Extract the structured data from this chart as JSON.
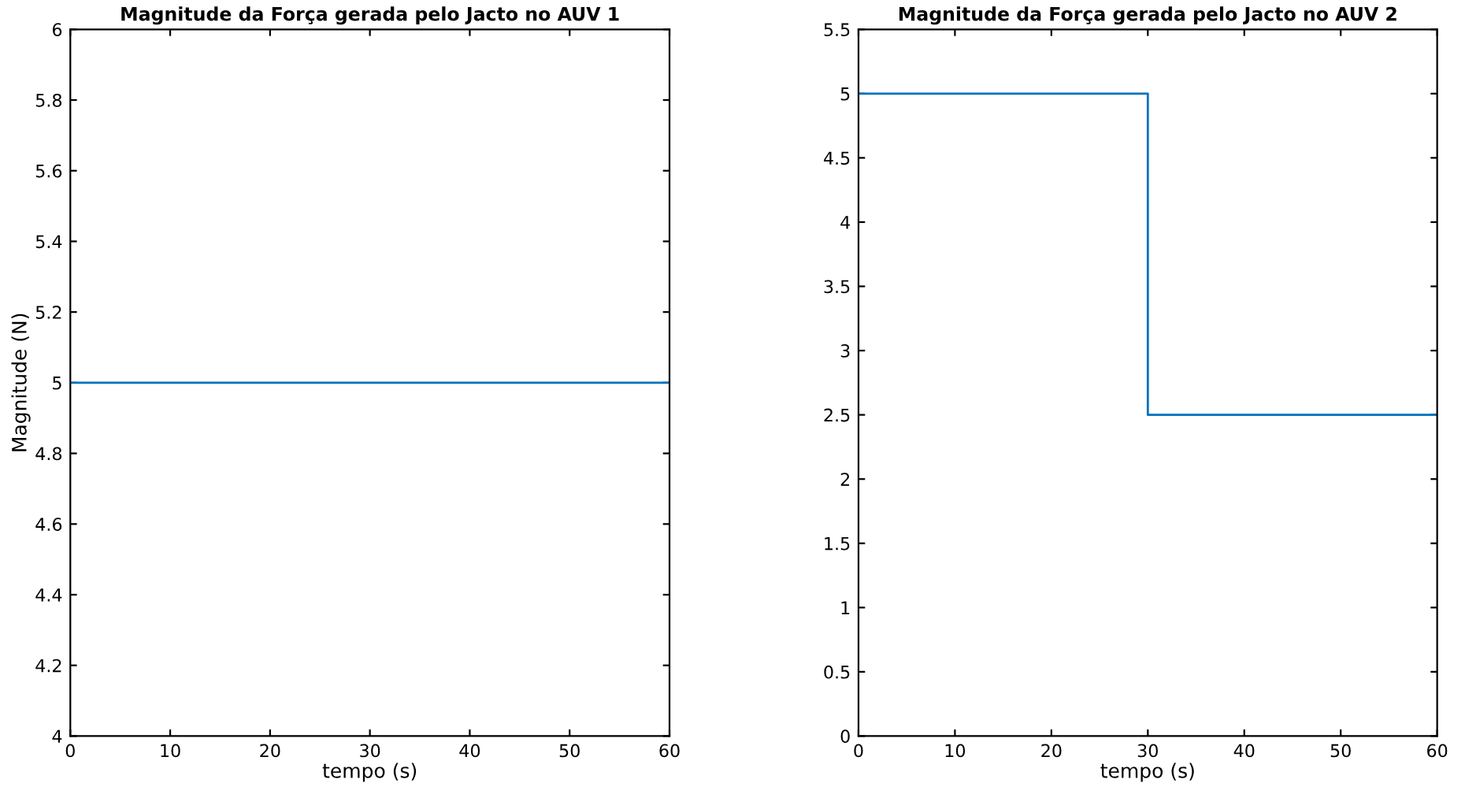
{
  "chart_data": [
    {
      "type": "line",
      "title": "Magnitude da Força gerada pelo Jacto no AUV 1",
      "xlabel": "tempo (s)",
      "ylabel": "Magnitude (N)",
      "x": [
        0,
        60
      ],
      "series": [
        {
          "color": "#0072bd",
          "values": [
            5,
            5
          ]
        }
      ],
      "xlim": [
        0,
        60
      ],
      "xticks": [
        0,
        10,
        20,
        30,
        40,
        50,
        60
      ],
      "ylim": [
        4,
        6
      ],
      "yticks": [
        4,
        4.2,
        4.4,
        4.6,
        4.8,
        5,
        5.2,
        5.4,
        5.6,
        5.8,
        6
      ],
      "grid": false,
      "legend": false
    },
    {
      "type": "line",
      "title": "Magnitude da Força gerada pelo Jacto no AUV 2",
      "xlabel": "tempo (s)",
      "x": [
        0,
        30,
        30,
        60
      ],
      "series": [
        {
          "color": "#0072bd",
          "values": [
            5,
            5,
            2.5,
            2.5
          ]
        }
      ],
      "xlim": [
        0,
        60
      ],
      "xticks": [
        0,
        10,
        20,
        30,
        40,
        50,
        60
      ],
      "ylim": [
        0,
        5.5
      ],
      "yticks": [
        0,
        0.5,
        1,
        1.5,
        2,
        2.5,
        3,
        3.5,
        4,
        4.5,
        5,
        5.5
      ],
      "grid": false,
      "legend": false
    }
  ]
}
